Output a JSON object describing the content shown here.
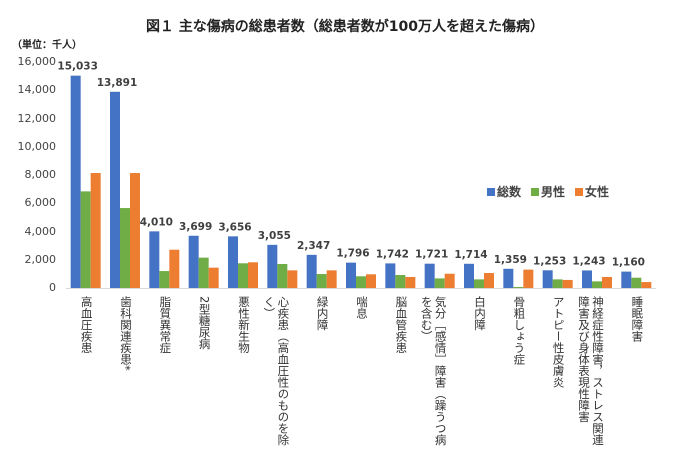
{
  "chart_data": {
    "type": "bar",
    "title": "図１ 主な傷病の総患者数（総患者数が100万人を超えた傷病）",
    "ylabel": "（単位：千人）",
    "ylim": [
      0,
      16000
    ],
    "yticks": [
      "0",
      "2,000",
      "4,000",
      "6,000",
      "8,000",
      "10,000",
      "12,000",
      "14,000",
      "16,000"
    ],
    "legend_position": "right-middle",
    "categories": [
      "高血圧疾患",
      "歯科関連疾患*",
      "脂質異常症",
      "2型糖尿病",
      "悪性新生物",
      "心疾患（高血圧性のものを除く）",
      "緑内障",
      "喘息",
      "脳血管疾患",
      "気分［感情］障害（躁うつ病を含む）",
      "白内障",
      "骨粗しょう症",
      "アトピー性皮膚炎",
      "神経症性障害，ストレス関連障害及び身体表現性障害",
      "睡眠障害"
    ],
    "series": [
      {
        "name": "総数",
        "color": "#4472C4",
        "values": [
          15033,
          13891,
          4010,
          3699,
          3656,
          3055,
          2347,
          1796,
          1742,
          1721,
          1714,
          1359,
          1253,
          1243,
          1160
        ]
      },
      {
        "name": "男性",
        "color": "#70AD47",
        "values": [
          6840,
          5660,
          1200,
          2150,
          1750,
          1700,
          990,
          830,
          920,
          680,
          610,
          70,
          610,
          470,
          730
        ]
      },
      {
        "name": "女性",
        "color": "#ED7D31",
        "values": [
          8140,
          8140,
          2710,
          1440,
          1820,
          1250,
          1250,
          970,
          780,
          1010,
          1060,
          1300,
          570,
          780,
          420
        ]
      }
    ],
    "data_labels": [
      "15,033",
      "13,891",
      "4,010",
      "3,699",
      "3,656",
      "3,055",
      "2,347",
      "1,796",
      "1,742",
      "1,721",
      "1,714",
      "1,359",
      "1,253",
      "1,243",
      "1,160"
    ]
  }
}
